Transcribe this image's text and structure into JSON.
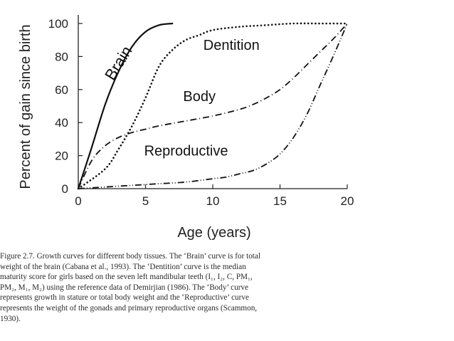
{
  "chart_data": {
    "type": "line",
    "xlabel": "Age (years)",
    "ylabel": "Percent of gain since birth",
    "xlim": [
      0,
      20
    ],
    "ylim": [
      0,
      100
    ],
    "x_ticks": [
      "0",
      "5",
      "10",
      "15",
      "20"
    ],
    "y_ticks": [
      "0",
      "20",
      "40",
      "60",
      "80",
      "100"
    ],
    "grid": false,
    "legend": "none",
    "series": [
      {
        "name": "Brain",
        "style": "solid",
        "x": [
          0,
          1,
          2,
          3,
          4,
          5,
          6,
          7
        ],
        "y": [
          0,
          25,
          51,
          71,
          86,
          95,
          99,
          100
        ]
      },
      {
        "name": "Dentition",
        "style": "dotted",
        "x": [
          0,
          2,
          3,
          4,
          5,
          6,
          7,
          8,
          9,
          10,
          12,
          14,
          16,
          18,
          20
        ],
        "y": [
          0,
          12,
          24,
          38,
          55,
          74,
          84,
          90,
          93,
          96,
          98,
          99,
          100,
          100,
          100
        ]
      },
      {
        "name": "Body",
        "style": "dash-dot",
        "x": [
          0,
          1,
          2,
          3,
          4,
          5,
          6,
          8,
          10,
          12,
          13,
          14,
          15,
          16,
          17,
          18,
          19,
          20
        ],
        "y": [
          0,
          17,
          26,
          31,
          34,
          36,
          38,
          41,
          44,
          48,
          51,
          55,
          60,
          67,
          75,
          83,
          91,
          100
        ]
      },
      {
        "name": "Reproductive",
        "style": "dash-dot-dot",
        "x": [
          0,
          2,
          4,
          6,
          8,
          10,
          11,
          12,
          13,
          14,
          15,
          16,
          17,
          18,
          19,
          20
        ],
        "y": [
          0,
          1,
          2,
          3,
          4,
          6,
          7,
          9,
          11,
          15,
          21,
          31,
          45,
          63,
          81,
          100
        ]
      }
    ]
  },
  "caption_lines": [
    "Figure 2.7. Growth curves for different body tissues. The ‘Brain’ curve is for total",
    "weight of the brain (Cabana et al., 1993). The ‘Dentition’ curve is the median",
    "maturity score for girls based on the seven left mandibular teeth (I₁, I₂, C, PM₁,",
    "PM₂, M₁, M₂) using the reference data of Demirjian (1986). The ‘Body’ curve",
    "represents growth in stature or total body weight and the ‘Reproductive’ curve",
    "represents the weight of the gonads and primary reproductive organs (Scammon,",
    "1930)."
  ]
}
